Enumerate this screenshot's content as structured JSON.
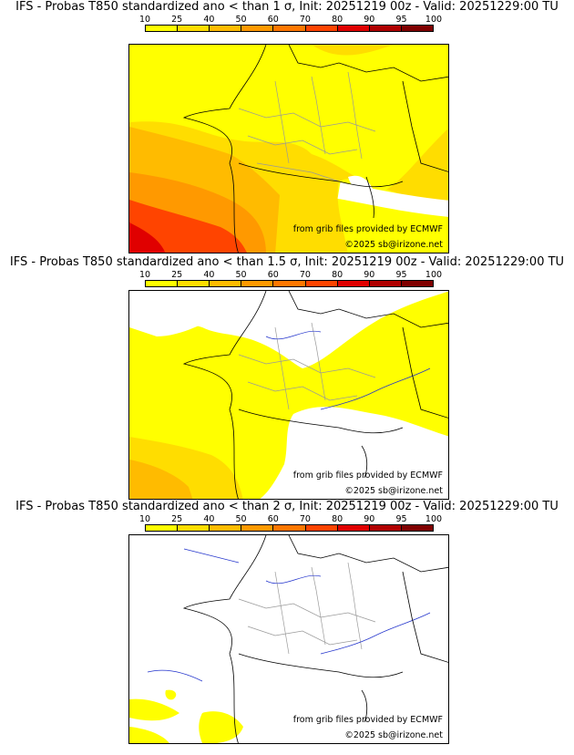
{
  "legend": {
    "ticks": [
      "10",
      "25",
      "40",
      "50",
      "60",
      "70",
      "80",
      "90",
      "95",
      "100"
    ],
    "colors": [
      "#ffff00",
      "#ffdd00",
      "#ffbb00",
      "#ff9900",
      "#ff7700",
      "#ff4400",
      "#e00000",
      "#b00000",
      "#800000"
    ]
  },
  "panels": [
    {
      "title": "IFS - Probas T850  standardized ano < than 1 σ, Init: 20251219 00z - Valid: 20251229:00 TU"
    },
    {
      "title": "IFS - Probas T850  standardized ano < than 1.5 σ, Init: 20251219 00z - Valid: 20251229:00 TU"
    },
    {
      "title": "IFS - Probas T850  standardized ano < than 2 σ, Init: 20251219 00z - Valid: 20251229:00 TU"
    }
  ],
  "credit": {
    "source": "from grib files provided by ECMWF",
    "copyright": "©2025 sb@irizone.net"
  }
}
